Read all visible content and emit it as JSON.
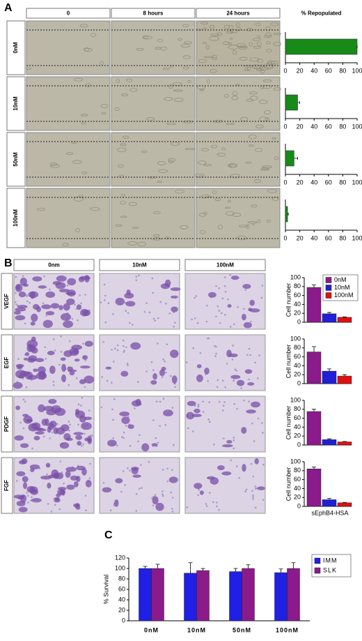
{
  "panels": {
    "a": {
      "label": "A",
      "columns": [
        "0",
        "8 hours",
        "24 hours"
      ],
      "rows": [
        "0nM",
        "10nM",
        "50nM",
        "100nM"
      ]
    },
    "b": {
      "label": "B",
      "columns": [
        "0nm",
        "10nM",
        "100nM"
      ],
      "rows": [
        "VEGF",
        "EGF",
        "PDGF",
        "FGF"
      ]
    },
    "c": {
      "label": "C"
    }
  },
  "chart_data": [
    {
      "type": "hbar",
      "title": "% Repopulated",
      "values": [
        100
      ],
      "errors": [
        0
      ],
      "color": "#178a17",
      "xlim": [
        0,
        100
      ],
      "xticks": [
        0,
        20,
        40,
        60,
        80,
        100
      ]
    },
    {
      "type": "hbar",
      "values": [
        17
      ],
      "errors": [
        3
      ],
      "color": "#178a17",
      "xlim": [
        0,
        100
      ],
      "xticks": [
        0,
        20,
        40,
        60,
        80,
        100
      ]
    },
    {
      "type": "hbar",
      "values": [
        12
      ],
      "errors": [
        5
      ],
      "color": "#178a17",
      "xlim": [
        0,
        100
      ],
      "xticks": [
        0,
        20,
        40,
        60,
        80,
        100
      ]
    },
    {
      "type": "hbar",
      "values": [
        3
      ],
      "errors": [
        1
      ],
      "color": "#178a17",
      "xlim": [
        0,
        100
      ],
      "xticks": [
        0,
        20,
        40,
        60,
        80,
        100
      ]
    },
    {
      "type": "bar",
      "ylabel": "Cell number",
      "legend": "top-right",
      "ylim": [
        0,
        100
      ],
      "yticks": [
        0,
        20,
        40,
        60,
        80,
        100
      ],
      "series": [
        {
          "name": "0nM",
          "color": "#8b1a8b",
          "values": [
            78
          ],
          "errors": [
            6
          ]
        },
        {
          "name": "10nM",
          "color": "#1f1fd6",
          "values": [
            19
          ],
          "errors": [
            3
          ]
        },
        {
          "name": "100nM",
          "color": "#e01010",
          "values": [
            11
          ],
          "errors": [
            1
          ]
        }
      ]
    },
    {
      "type": "bar",
      "ylabel": "Cell number",
      "ylim": [
        0,
        100
      ],
      "yticks": [
        0,
        20,
        40,
        60,
        80,
        100
      ],
      "series": [
        {
          "color": "#8b1a8b",
          "values": [
            71
          ],
          "errors": [
            12
          ]
        },
        {
          "color": "#1f1fd6",
          "values": [
            28
          ],
          "errors": [
            5
          ]
        },
        {
          "color": "#e01010",
          "values": [
            17
          ],
          "errors": [
            3
          ]
        }
      ]
    },
    {
      "type": "bar",
      "ylabel": "Cell number",
      "ylim": [
        0,
        100
      ],
      "yticks": [
        0,
        20,
        40,
        60,
        80,
        100
      ],
      "series": [
        {
          "color": "#8b1a8b",
          "values": [
            75
          ],
          "errors": [
            5
          ]
        },
        {
          "color": "#1f1fd6",
          "values": [
            12
          ],
          "errors": [
            2
          ]
        },
        {
          "color": "#e01010",
          "values": [
            7
          ],
          "errors": [
            1
          ]
        }
      ]
    },
    {
      "type": "bar",
      "ylabel": "Cell number",
      "xlabel": "sEphB4-HSA",
      "ylim": [
        0,
        100
      ],
      "yticks": [
        0,
        20,
        40,
        60,
        80,
        100
      ],
      "series": [
        {
          "color": "#8b1a8b",
          "values": [
            84
          ],
          "errors": [
            4
          ]
        },
        {
          "color": "#1f1fd6",
          "values": [
            15
          ],
          "errors": [
            3
          ]
        },
        {
          "color": "#e01010",
          "values": [
            8
          ],
          "errors": [
            1
          ]
        }
      ]
    },
    {
      "type": "bar",
      "ylabel": "% Survival",
      "legend": "top-right",
      "categories": [
        "0nM",
        "10nM",
        "50nM",
        "100nM"
      ],
      "ylim": [
        0,
        120
      ],
      "yticks": [
        0,
        20,
        40,
        60,
        80,
        100,
        120
      ],
      "series": [
        {
          "name": "IMM",
          "color": "#1f1fe6",
          "values": [
            100,
            91,
            94,
            92
          ],
          "errors": [
            4,
            20,
            6,
            7
          ]
        },
        {
          "name": "SLK",
          "color": "#8b1a8b",
          "values": [
            100,
            96,
            100,
            100
          ],
          "errors": [
            8,
            4,
            7,
            11
          ]
        }
      ]
    }
  ]
}
